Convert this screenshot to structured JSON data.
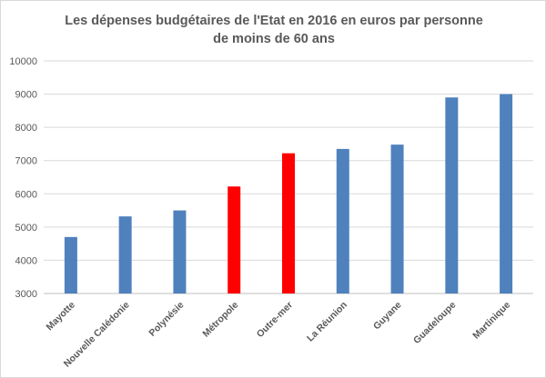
{
  "chart_data": {
    "type": "bar",
    "title": "Les dépenses budgétaires de l'Etat en 2016 en euros par personne de moins de 60 ans",
    "xlabel": "",
    "ylabel": "",
    "categories": [
      "Mayotte",
      "Nouvelle Calédonie",
      "Polynésie",
      "Métropole",
      "Outre-mer",
      "La Réunion",
      "Guyane",
      "Guadeloupe",
      "Martinique"
    ],
    "values": [
      4700,
      5320,
      5500,
      6220,
      7220,
      7350,
      7480,
      8900,
      9000
    ],
    "bar_colors": [
      "#4f81bd",
      "#4f81bd",
      "#4f81bd",
      "#ff0000",
      "#ff0000",
      "#4f81bd",
      "#4f81bd",
      "#4f81bd",
      "#4f81bd"
    ],
    "ylim": [
      3000,
      10000
    ],
    "yticks": [
      "3000",
      "4000",
      "5000",
      "6000",
      "7000",
      "8000",
      "9000",
      "10000"
    ],
    "grid": true,
    "legend": "none"
  }
}
